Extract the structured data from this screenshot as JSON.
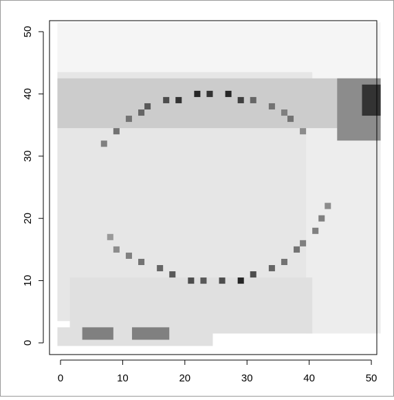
{
  "chart_data": {
    "type": "heatmap",
    "xlim": [
      -1.77,
      50.88
    ],
    "ylim": [
      -1.88,
      51.77
    ],
    "xticks": [
      0,
      10,
      20,
      30,
      40,
      50
    ],
    "yticks": [
      0,
      10,
      20,
      30,
      40,
      50
    ],
    "regions": [
      {
        "x": [
          0,
          51
        ],
        "y": [
          43,
          51
        ],
        "z": 0.04
      },
      {
        "x": [
          0,
          40
        ],
        "y": [
          4,
          43
        ],
        "z": 0.1
      },
      {
        "x": [
          40,
          51
        ],
        "y": [
          2,
          35
        ],
        "z": 0.07
      },
      {
        "x": [
          2,
          40
        ],
        "y": [
          2,
          10
        ],
        "z": 0.12
      },
      {
        "x": [
          0,
          51
        ],
        "y": [
          35,
          42
        ],
        "z": 0.2
      },
      {
        "x": [
          45,
          51
        ],
        "y": [
          33,
          42
        ],
        "z": 0.45
      },
      {
        "x": [
          49,
          51
        ],
        "y": [
          37,
          41
        ],
        "z": 0.8
      },
      {
        "x": [
          0,
          24
        ],
        "y": [
          0,
          2
        ],
        "z": 0.12
      },
      {
        "x": [
          4,
          8
        ],
        "y": [
          1,
          2
        ],
        "z": 0.5
      },
      {
        "x": [
          12,
          17
        ],
        "y": [
          1,
          2
        ],
        "z": 0.5
      }
    ],
    "cells": {
      "x": [
        7,
        9,
        11,
        13,
        14,
        17,
        19,
        22,
        24,
        27,
        29,
        31,
        34,
        36,
        37,
        39,
        8,
        9,
        11,
        13,
        16,
        18,
        21,
        23,
        26,
        29,
        31,
        34,
        36,
        38,
        39,
        41,
        42,
        43
      ],
      "y": [
        32,
        34,
        36,
        37,
        38,
        39,
        39,
        40,
        40,
        40,
        39,
        39,
        38,
        37,
        36,
        34,
        17,
        15,
        14,
        13,
        12,
        11,
        10,
        10,
        10,
        10,
        11,
        12,
        13,
        15,
        16,
        18,
        20,
        22
      ],
      "z": [
        0.5,
        0.55,
        0.55,
        0.6,
        0.65,
        0.7,
        0.8,
        0.85,
        0.8,
        0.85,
        0.75,
        0.6,
        0.55,
        0.5,
        0.55,
        0.45,
        0.4,
        0.45,
        0.5,
        0.55,
        0.6,
        0.65,
        0.7,
        0.65,
        0.7,
        0.85,
        0.7,
        0.6,
        0.55,
        0.55,
        0.5,
        0.5,
        0.5,
        0.45
      ]
    }
  }
}
